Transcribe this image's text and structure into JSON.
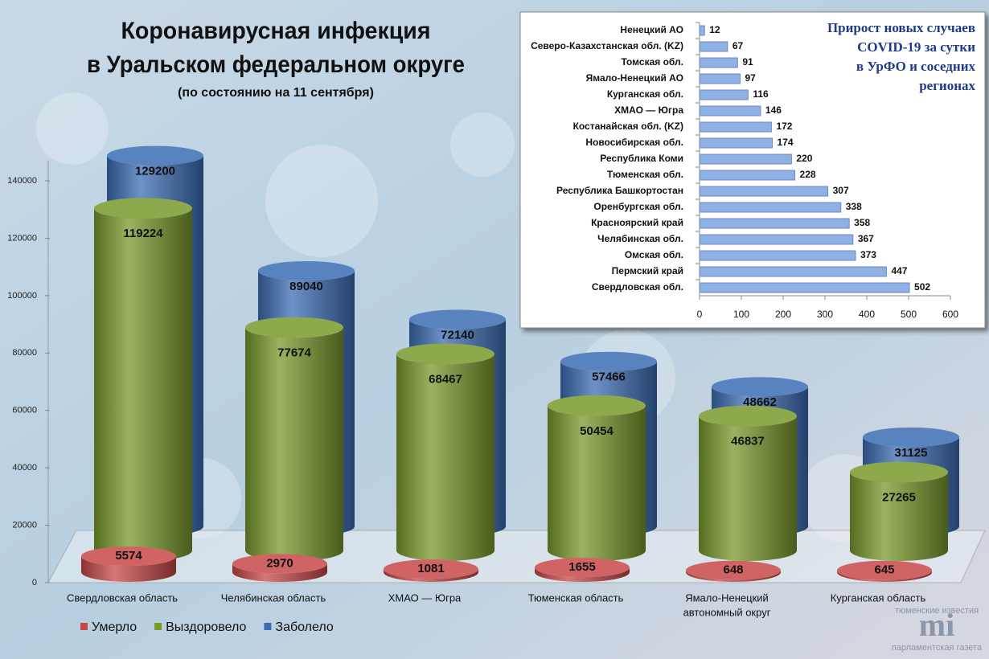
{
  "chart_data": [
    {
      "type": "cylinder",
      "title": [
        "Коронавирусная инфекция",
        "в Уральском федеральном округе"
      ],
      "subtitle": "(по состоянию на 11 сентября)",
      "categories": [
        [
          "Свердловская область"
        ],
        [
          "Челябинская область"
        ],
        [
          "ХМАО — Югра"
        ],
        [
          "Тюменская область"
        ],
        [
          "Ямало-Ненецкий",
          "автономный округ"
        ],
        [
          "Курганская область"
        ]
      ],
      "series": [
        {
          "name": "Умерло",
          "color": "#c84848",
          "values": [
            5574,
            2970,
            1081,
            1655,
            648,
            645
          ]
        },
        {
          "name": "Выздоровело",
          "color": "#7a9a2c",
          "values": [
            119224,
            77674,
            68467,
            50454,
            46837,
            27265
          ]
        },
        {
          "name": "Заболело",
          "color": "#3c6db4",
          "values": [
            129200,
            89040,
            72140,
            57466,
            48662,
            31125
          ]
        }
      ],
      "ylim": [
        0,
        140000
      ],
      "yticks": [
        0,
        20000,
        40000,
        60000,
        80000,
        100000,
        120000,
        140000
      ],
      "legend": "bottom-left"
    },
    {
      "type": "bar",
      "orientation": "horizontal",
      "title": [
        "Прирост новых случаев",
        "COVID-19 за сутки",
        "в УрФО и соседних",
        "регионах"
      ],
      "categories": [
        "Ненецкий АО",
        "Северо-Казахстанская обл. (KZ)",
        "Томская обл.",
        "Ямало-Ненецкий АО",
        "Курганская обл.",
        "ХМАО — Югра",
        "Костанайская обл. (KZ)",
        "Новосибирская обл.",
        "Республика Коми",
        "Тюменская обл.",
        "Республика Башкортостан",
        "Оренбургская обл.",
        "Красноярский край",
        "Челябинская обл.",
        "Омская обл.",
        "Пермский край",
        "Свердловская обл."
      ],
      "values": [
        12,
        67,
        91,
        97,
        116,
        146,
        172,
        174,
        220,
        228,
        307,
        338,
        358,
        367,
        373,
        447,
        502
      ],
      "color": "#8eb0e2",
      "xlim": [
        0,
        600
      ],
      "xticks": [
        0,
        100,
        200,
        300,
        400,
        500,
        600
      ]
    }
  ],
  "logo": [
    "тюменские известия",
    "mi",
    "парламентская газета"
  ]
}
